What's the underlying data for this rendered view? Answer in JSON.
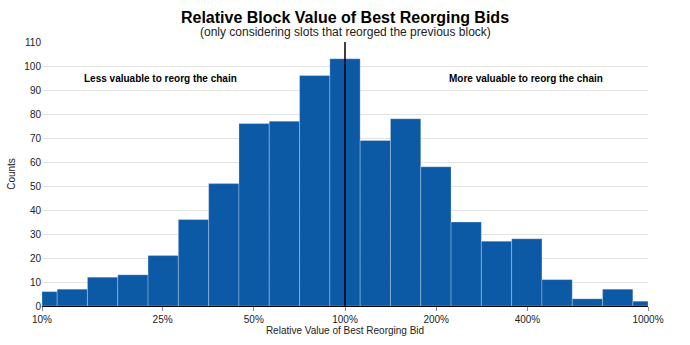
{
  "chart_data": {
    "type": "histogram",
    "title": "Relative Block Value of Best Reorging Bids",
    "subtitle": "(only considering slots that reorged the previous block)",
    "x_label": "Relative Value of Best Reorging Bid",
    "y_label": "Counts",
    "bins": [
      10,
      11.22,
      14.125,
      17.783,
      22.387,
      28.184,
      35.481,
      44.668,
      56.234,
      70.795,
      89.125,
      112.2,
      141.25,
      177.83,
      223.87,
      281.84,
      354.81,
      446.68,
      562.34,
      707.95,
      891.25,
      1000
    ],
    "counts": [
      6,
      7,
      12,
      13,
      21,
      36,
      51,
      76,
      77,
      96,
      103,
      69,
      78,
      58,
      35,
      27,
      28,
      11,
      3,
      7,
      2
    ],
    "color": "#0c5aa6",
    "log": "x",
    "xlim": [
      10,
      1000
    ],
    "xticks": [
      {
        "value": 10,
        "label": "10%"
      },
      {
        "value": 25,
        "label": "25%"
      },
      {
        "value": 50,
        "label": "50%"
      },
      {
        "value": 100,
        "label": "100%"
      },
      {
        "value": 200,
        "label": "200%"
      },
      {
        "value": 400,
        "label": "400%"
      },
      {
        "value": 1000,
        "label": "1000%"
      }
    ],
    "ylim": [
      0,
      110
    ],
    "yticks": [
      0,
      10,
      20,
      30,
      40,
      50,
      60,
      70,
      80,
      90,
      100,
      110
    ],
    "grid": true,
    "vline": 100,
    "annotations": [
      "Less valuable to reorg the chain",
      "More valuable to reorg the chain"
    ]
  }
}
